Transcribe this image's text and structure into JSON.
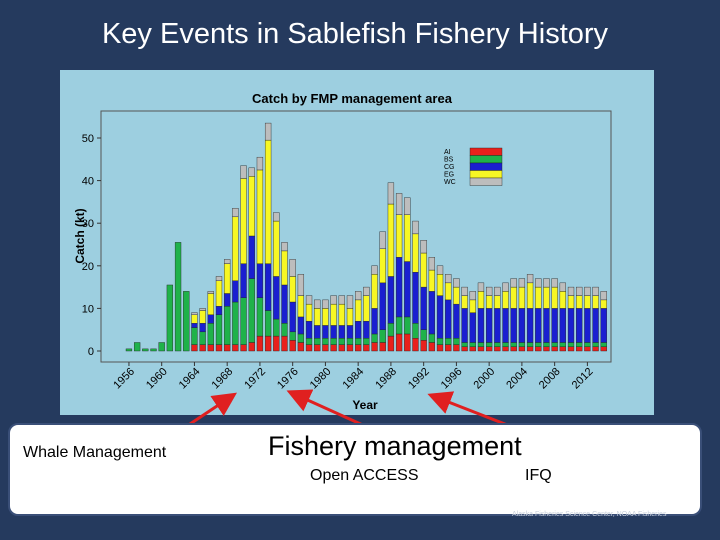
{
  "slide": {
    "title": "Key Events in Sablefish Fishery History",
    "labels": {
      "whale": "Whale Management",
      "fishery": "Fishery management",
      "open_access": "Open ACCESS",
      "ifq": "IFQ"
    },
    "credit": "Alaska Fisheries Science Center, NOAA Fisheries",
    "colors": {
      "background": "#253a5e",
      "figure_bg": "#9dcfe0",
      "arrow": "#e02020"
    }
  },
  "chart_data": {
    "type": "bar",
    "stacked": true,
    "title": "Catch by FMP management area",
    "xlabel": "Year",
    "ylabel": "Catch (kt)",
    "ylim": [
      0,
      55
    ],
    "yticks": [
      0,
      10,
      20,
      30,
      40,
      50
    ],
    "xtick_labels": [
      "1956",
      "1960",
      "1964",
      "1968",
      "1972",
      "1976",
      "1980",
      "1984",
      "1988",
      "1992",
      "1996",
      "2000",
      "2004",
      "2008",
      "2012"
    ],
    "grid": false,
    "legend": "top-right",
    "years": [
      1956,
      1957,
      1958,
      1959,
      1960,
      1961,
      1962,
      1963,
      1964,
      1965,
      1966,
      1967,
      1968,
      1969,
      1970,
      1971,
      1972,
      1973,
      1974,
      1975,
      1976,
      1977,
      1978,
      1979,
      1980,
      1981,
      1982,
      1983,
      1984,
      1985,
      1986,
      1987,
      1988,
      1989,
      1990,
      1991,
      1992,
      1993,
      1994,
      1995,
      1996,
      1997,
      1998,
      1999,
      2000,
      2001,
      2002,
      2003,
      2004,
      2005,
      2006,
      2007,
      2008,
      2009,
      2010,
      2011,
      2012,
      2013,
      2014
    ],
    "series": [
      {
        "name": "AI",
        "color": "#e8201c",
        "values": [
          0,
          0,
          0,
          0,
          0,
          0,
          0,
          0,
          1.5,
          1.5,
          1.5,
          1.5,
          1.5,
          1.5,
          1.5,
          2,
          3.5,
          3.5,
          3.5,
          3.5,
          2.5,
          2,
          1.5,
          1.5,
          1.5,
          1.5,
          1.5,
          1.5,
          1.5,
          1.5,
          2,
          2,
          3.5,
          4,
          4,
          3,
          2.5,
          2,
          1.5,
          1.5,
          1.5,
          1,
          1,
          1,
          1,
          1,
          1,
          1,
          1,
          1,
          1,
          1,
          1,
          1,
          1,
          1,
          1,
          1,
          1
        ]
      },
      {
        "name": "BS",
        "color": "#1fb24a",
        "values": [
          0.5,
          2,
          0.5,
          0.5,
          2,
          15.5,
          25.5,
          14,
          4,
          3,
          5,
          7,
          9,
          10,
          11,
          15,
          9,
          6,
          4,
          3,
          2,
          2,
          1.5,
          1.5,
          1.5,
          1.5,
          1.5,
          1.5,
          1.5,
          1.5,
          2,
          3,
          3,
          4,
          4,
          3.5,
          2.5,
          2,
          1.5,
          1.5,
          1.5,
          1,
          1,
          1,
          1,
          1,
          1,
          1,
          1,
          1,
          1,
          1,
          1,
          1,
          1,
          1,
          1,
          1,
          1
        ]
      },
      {
        "name": "CG",
        "color": "#1a1fd0",
        "values": [
          0,
          0,
          0,
          0,
          0,
          0,
          0,
          0,
          1,
          2,
          2,
          2,
          3,
          5,
          8,
          10,
          8,
          11,
          10,
          9,
          7,
          4,
          4,
          3,
          3,
          3,
          3,
          3,
          4,
          4,
          6,
          11,
          11,
          14,
          13,
          12,
          10,
          10,
          10,
          9,
          8,
          8,
          7,
          8,
          8,
          8,
          8,
          8,
          8,
          8,
          8,
          8,
          8,
          8,
          8,
          8,
          8,
          8,
          8
        ]
      },
      {
        "name": "EG",
        "color": "#f7f724",
        "values": [
          0,
          0,
          0,
          0,
          0,
          0,
          0,
          0,
          2,
          3,
          5,
          6,
          7,
          15,
          20,
          14,
          22,
          29,
          13,
          8,
          6,
          5,
          4,
          4,
          4,
          5,
          5,
          4,
          5,
          6,
          8,
          8,
          17,
          10,
          11,
          9,
          8,
          5,
          5,
          4,
          4,
          3,
          3,
          4,
          3,
          3,
          4,
          5,
          5,
          6,
          5,
          5,
          5,
          4,
          3,
          3,
          3,
          3,
          2
        ]
      },
      {
        "name": "WC",
        "color": "#bdbdbd",
        "values": [
          0,
          0,
          0,
          0,
          0,
          0,
          0,
          0,
          0.5,
          0.5,
          0.5,
          1,
          1,
          2,
          3,
          2,
          3,
          4,
          2,
          2,
          4,
          5,
          2,
          2,
          2,
          2,
          2,
          3,
          2,
          2,
          2,
          4,
          5,
          5,
          4,
          3,
          3,
          3,
          2,
          2,
          2,
          2,
          2,
          2,
          2,
          2,
          2,
          2,
          2,
          2,
          2,
          2,
          2,
          2,
          2,
          2,
          2,
          2,
          2
        ]
      }
    ]
  }
}
